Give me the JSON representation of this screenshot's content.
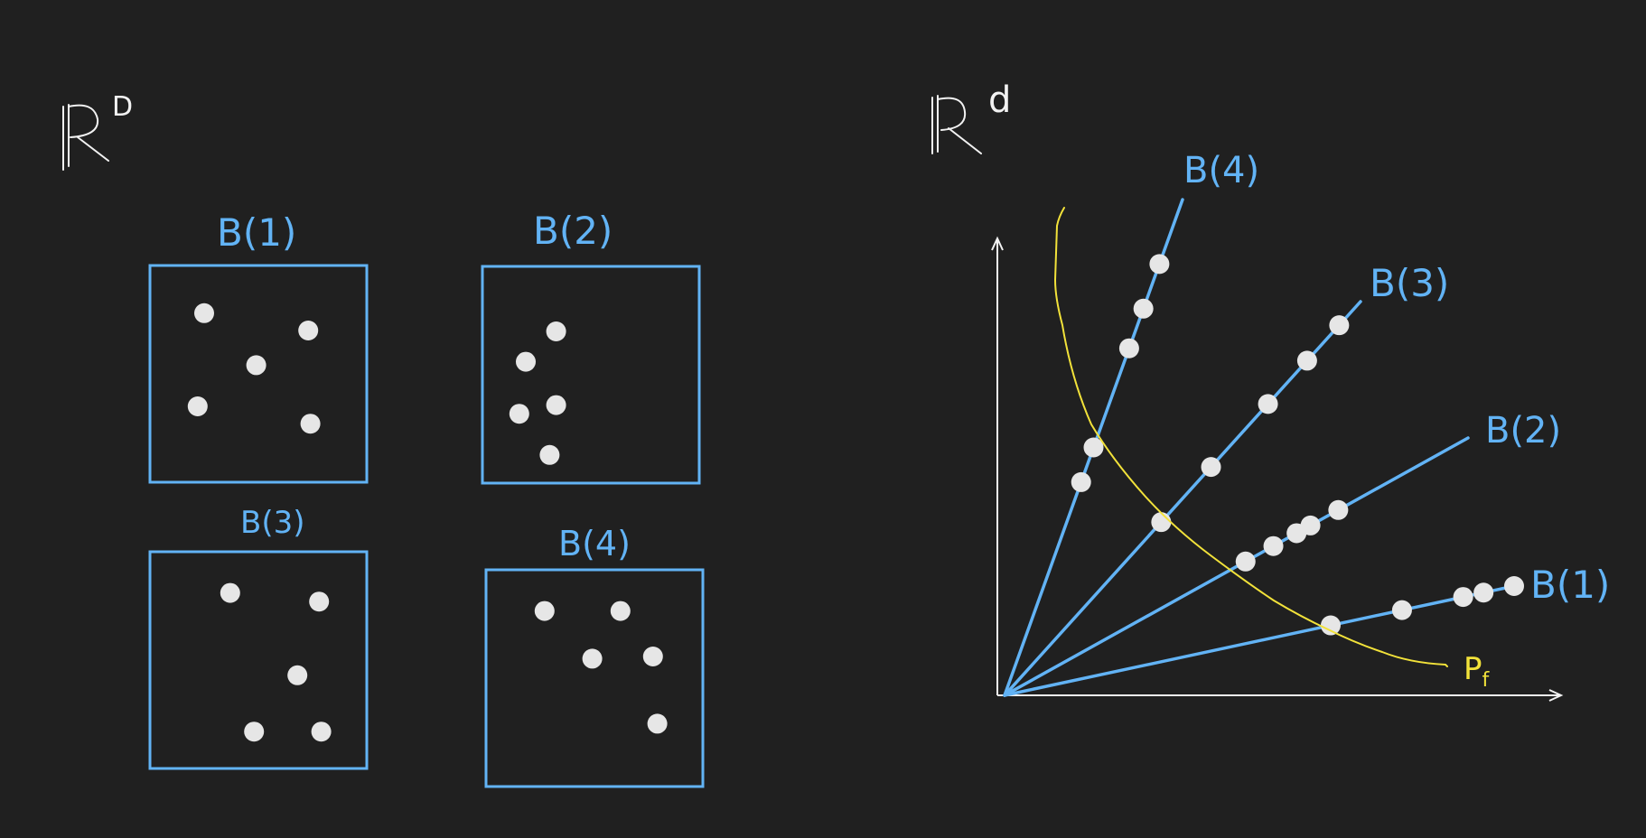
{
  "colors": {
    "background": "#202020",
    "chalk": "#f2f2f2",
    "blue": "#62b3f5",
    "yellow": "#f2e23a",
    "dot": "#e6e6e6"
  },
  "left_panel": {
    "space_label": "R",
    "space_superscript": "D",
    "boxes": [
      {
        "label": "B(1)",
        "points": [
          [
            0.25,
            0.22
          ],
          [
            0.73,
            0.3
          ],
          [
            0.49,
            0.46
          ],
          [
            0.22,
            0.65
          ],
          [
            0.74,
            0.73
          ]
        ]
      },
      {
        "label": "B(2)",
        "points": [
          [
            0.34,
            0.3
          ],
          [
            0.2,
            0.44
          ],
          [
            0.34,
            0.64
          ],
          [
            0.17,
            0.68
          ],
          [
            0.31,
            0.87
          ]
        ]
      },
      {
        "label": "B(3)",
        "points": [
          [
            0.37,
            0.19
          ],
          [
            0.78,
            0.23
          ],
          [
            0.68,
            0.57
          ],
          [
            0.48,
            0.83
          ],
          [
            0.79,
            0.83
          ]
        ]
      },
      {
        "label": "B(4)",
        "points": [
          [
            0.27,
            0.19
          ],
          [
            0.62,
            0.19
          ],
          [
            0.49,
            0.41
          ],
          [
            0.77,
            0.4
          ],
          [
            0.79,
            0.71
          ]
        ]
      }
    ]
  },
  "right_panel": {
    "space_label": "R",
    "space_superscript": "d",
    "rays": [
      {
        "label": "B(4)",
        "points": [
          0.43,
          0.5,
          0.7,
          0.78,
          0.87
        ]
      },
      {
        "label": "B(3)",
        "points": [
          0.44,
          0.58,
          0.74,
          0.85,
          0.94
        ]
      },
      {
        "label": "B(2)",
        "points": [
          0.52,
          0.58,
          0.63,
          0.66,
          0.72
        ]
      },
      {
        "label": "B(1)",
        "points": [
          0.64,
          0.78,
          0.9,
          0.94,
          1.0
        ]
      }
    ],
    "curve_label": "P",
    "curve_subscript": "f"
  }
}
